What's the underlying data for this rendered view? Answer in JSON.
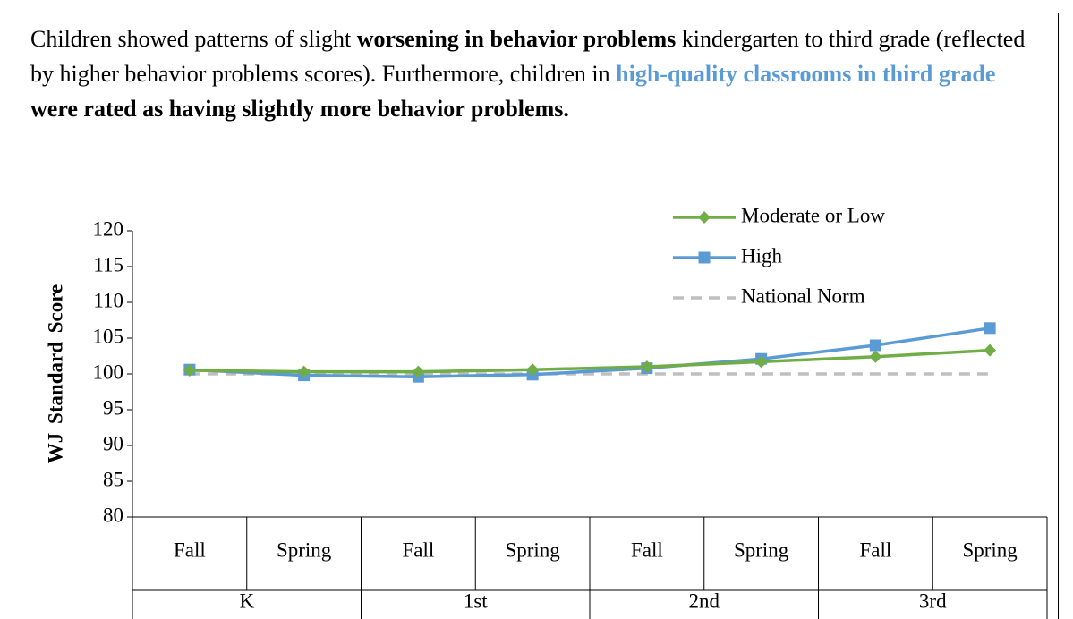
{
  "paragraph": [
    {
      "text": "Children showed patterns of slight ",
      "bold": false,
      "color": "#000000"
    },
    {
      "text": "worsening in behavior problems",
      "bold": true,
      "color": "#000000"
    },
    {
      "text": " kindergarten to third grade (reflected by higher behavior problems scores). Furthermore, children in ",
      "bold": false,
      "color": "#000000"
    },
    {
      "text": "high-quality classrooms in third grade",
      "bold": true,
      "color": "#5b9bd5"
    },
    {
      "text": " were rated as having slightly more behavior problems.",
      "bold": true,
      "color": "#000000"
    }
  ],
  "chart_data": {
    "type": "line",
    "y_label": "WJ Standard Score",
    "categories": [
      "Fall",
      "Spring",
      "Fall",
      "Spring",
      "Fall",
      "Spring",
      "Fall",
      "Spring"
    ],
    "groups": [
      "K",
      "1st",
      "2nd",
      "3rd"
    ],
    "series": [
      {
        "name": "Moderate or Low",
        "color": "#70ad47",
        "marker": "diamond",
        "dashed": false,
        "values": [
          100.5,
          100.3,
          100.3,
          100.6,
          101.0,
          101.7,
          102.4,
          103.3
        ]
      },
      {
        "name": "High",
        "color": "#5b9bd5",
        "marker": "square",
        "dashed": false,
        "values": [
          100.6,
          99.8,
          99.6,
          99.9,
          100.8,
          102.1,
          104.0,
          106.4
        ]
      },
      {
        "name": "National Norm",
        "color": "#bfbfbf",
        "marker": "none",
        "dashed": true,
        "values": [
          100,
          100,
          100,
          100,
          100,
          100,
          100,
          100
        ]
      }
    ],
    "ylim": [
      80,
      120
    ],
    "yticks": [
      80,
      85,
      90,
      95,
      100,
      105,
      110,
      115,
      120
    ],
    "grid": false,
    "legend": "top-right"
  }
}
